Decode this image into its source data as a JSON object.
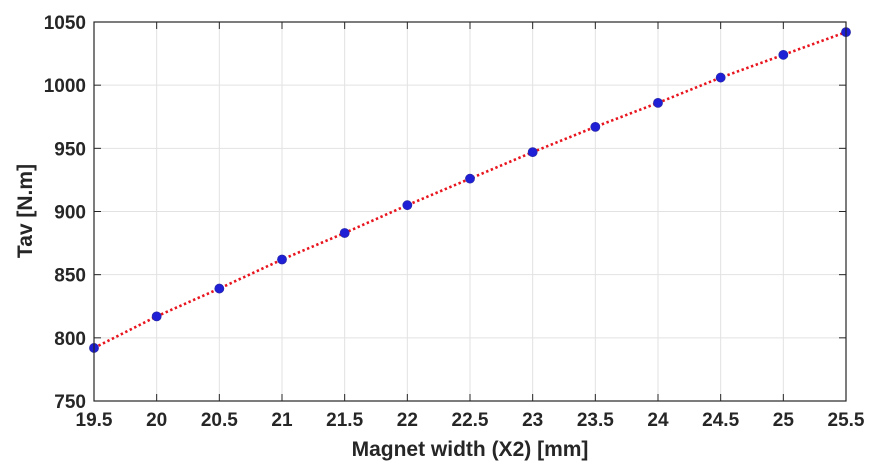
{
  "chart_data": {
    "type": "line",
    "xlabel": "Magnet width (X2) [mm]",
    "ylabel": "Tav [N.m]",
    "xlim": [
      19.5,
      25.5
    ],
    "ylim": [
      750,
      1050
    ],
    "xticks": [
      "19.5",
      "20",
      "20.5",
      "21",
      "21.5",
      "22",
      "22.5",
      "23",
      "23.5",
      "24",
      "24.5",
      "25",
      "25.5"
    ],
    "yticks": [
      "750",
      "800",
      "850",
      "900",
      "950",
      "1000",
      "1050"
    ],
    "grid": true,
    "series": [
      {
        "line_style": "dotted",
        "line_color": "#e8141e",
        "marker": "circle",
        "marker_color": "#1f1fd6",
        "x": [
          19.5,
          20,
          20.5,
          21,
          21.5,
          22,
          22.5,
          23,
          23.5,
          24,
          24.5,
          25,
          25.5
        ],
        "y": [
          792,
          817,
          839,
          862,
          883,
          905,
          926,
          947,
          967,
          986,
          1006,
          1024,
          1042
        ]
      }
    ]
  }
}
